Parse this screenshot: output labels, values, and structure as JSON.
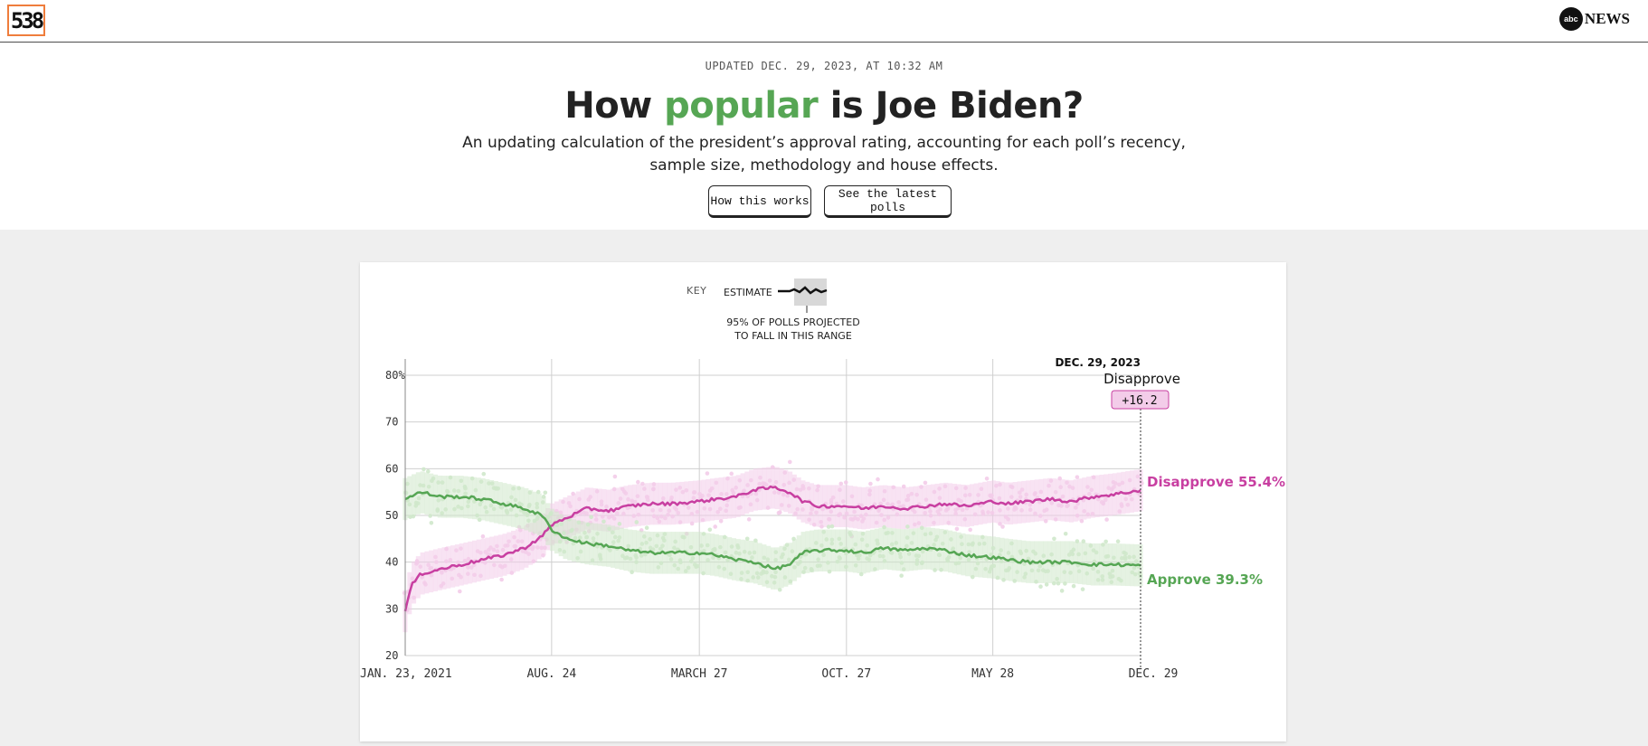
{
  "header": {
    "logo_text": "538",
    "partner_logo": "abc",
    "partner_name": "NEWS"
  },
  "hero": {
    "updated": "UPDATED DEC. 29, 2023, AT 10:32 AM",
    "title_pre": "How ",
    "title_accent": "popular",
    "title_post": " is Joe Biden?",
    "subtitle": "An updating calculation of the president’s approval rating, accounting for each poll’s recency, sample size, methodology and house effects.",
    "buttons": {
      "how": "How this works",
      "latest": "See the latest polls"
    }
  },
  "key": {
    "label": "KEY",
    "estimate": "ESTIMATE",
    "range_line1": "95% OF POLLS PROJECTED",
    "range_line2": "TO FALL IN THIS RANGE"
  },
  "colors": {
    "approve": "#56a654",
    "disapprove": "#c83fa1",
    "approve_light": "#cfe8cb",
    "disapprove_light": "#f3cce9",
    "accent_green": "#56a654"
  },
  "chart_data": {
    "type": "line",
    "xlabel": "",
    "ylabel": "",
    "ylim": [
      20,
      82
    ],
    "yticks": [
      "80%",
      "70",
      "60",
      "50",
      "40",
      "30",
      "20"
    ],
    "xticks": [
      "JAN. 23, 2021",
      "AUG. 24",
      "MARCH 27",
      "OCT. 27",
      "MAY 28",
      "DEC. 29"
    ],
    "xtick_dates": [
      "2021-01-23",
      "2021-08-24",
      "2022-03-27",
      "2022-10-27",
      "2023-05-28",
      "2023-12-29"
    ],
    "grid": true,
    "annotation": {
      "date": "DEC. 29, 2023",
      "leader": "Disapprove",
      "margin": "+16.2"
    },
    "series": [
      {
        "name": "Disapprove",
        "end_label": "Disapprove 55.4%",
        "dates": [
          "2021-01-23",
          "2021-02-01",
          "2021-02-15",
          "2021-03-15",
          "2021-04-15",
          "2021-05-15",
          "2021-06-15",
          "2021-07-15",
          "2021-08-10",
          "2021-08-24",
          "2021-09-15",
          "2021-10-15",
          "2021-11-15",
          "2021-12-15",
          "2022-01-15",
          "2022-02-15",
          "2022-03-27",
          "2022-04-20",
          "2022-05-20",
          "2022-06-15",
          "2022-07-15",
          "2022-08-05",
          "2022-08-25",
          "2022-09-15",
          "2022-10-27",
          "2022-11-20",
          "2022-12-20",
          "2023-01-20",
          "2023-02-20",
          "2023-03-20",
          "2023-04-20",
          "2023-05-28",
          "2023-06-20",
          "2023-07-20",
          "2023-08-20",
          "2023-09-20",
          "2023-10-20",
          "2023-11-20",
          "2023-12-29"
        ],
        "values": [
          29.5,
          35,
          37.5,
          38.5,
          39.5,
          40.5,
          41.5,
          43,
          45.5,
          48,
          49.5,
          51.5,
          51,
          52,
          52.5,
          52.5,
          53,
          53.5,
          54,
          55.5,
          56,
          55,
          53,
          52,
          52,
          51.5,
          52,
          51.5,
          52,
          52.5,
          52,
          53,
          52.5,
          53,
          53.5,
          53,
          54,
          54.5,
          55.4
        ]
      },
      {
        "name": "Approve",
        "end_label": "Approve 39.3%",
        "dates": [
          "2021-01-23",
          "2021-02-15",
          "2021-03-15",
          "2021-04-15",
          "2021-05-15",
          "2021-06-15",
          "2021-07-15",
          "2021-08-10",
          "2021-08-24",
          "2021-09-15",
          "2021-10-15",
          "2021-11-15",
          "2021-12-15",
          "2022-01-15",
          "2022-02-15",
          "2022-03-27",
          "2022-04-20",
          "2022-05-20",
          "2022-06-15",
          "2022-07-15",
          "2022-08-05",
          "2022-08-25",
          "2022-09-15",
          "2022-10-27",
          "2022-11-20",
          "2022-12-20",
          "2023-01-20",
          "2023-02-20",
          "2023-03-20",
          "2023-04-20",
          "2023-05-28",
          "2023-06-20",
          "2023-07-20",
          "2023-08-20",
          "2023-09-20",
          "2023-10-20",
          "2023-11-20",
          "2023-12-29"
        ],
        "values": [
          53.5,
          55,
          54,
          54,
          53.5,
          52.5,
          51.5,
          50,
          47,
          45,
          44,
          43.5,
          42.5,
          42,
          42,
          42,
          41.5,
          40.5,
          40,
          38.5,
          39.5,
          42,
          42.5,
          42.5,
          42,
          43,
          42.5,
          43,
          42.5,
          41.5,
          41,
          40.5,
          40,
          40,
          40,
          39.5,
          39.5,
          39.3
        ]
      }
    ]
  }
}
